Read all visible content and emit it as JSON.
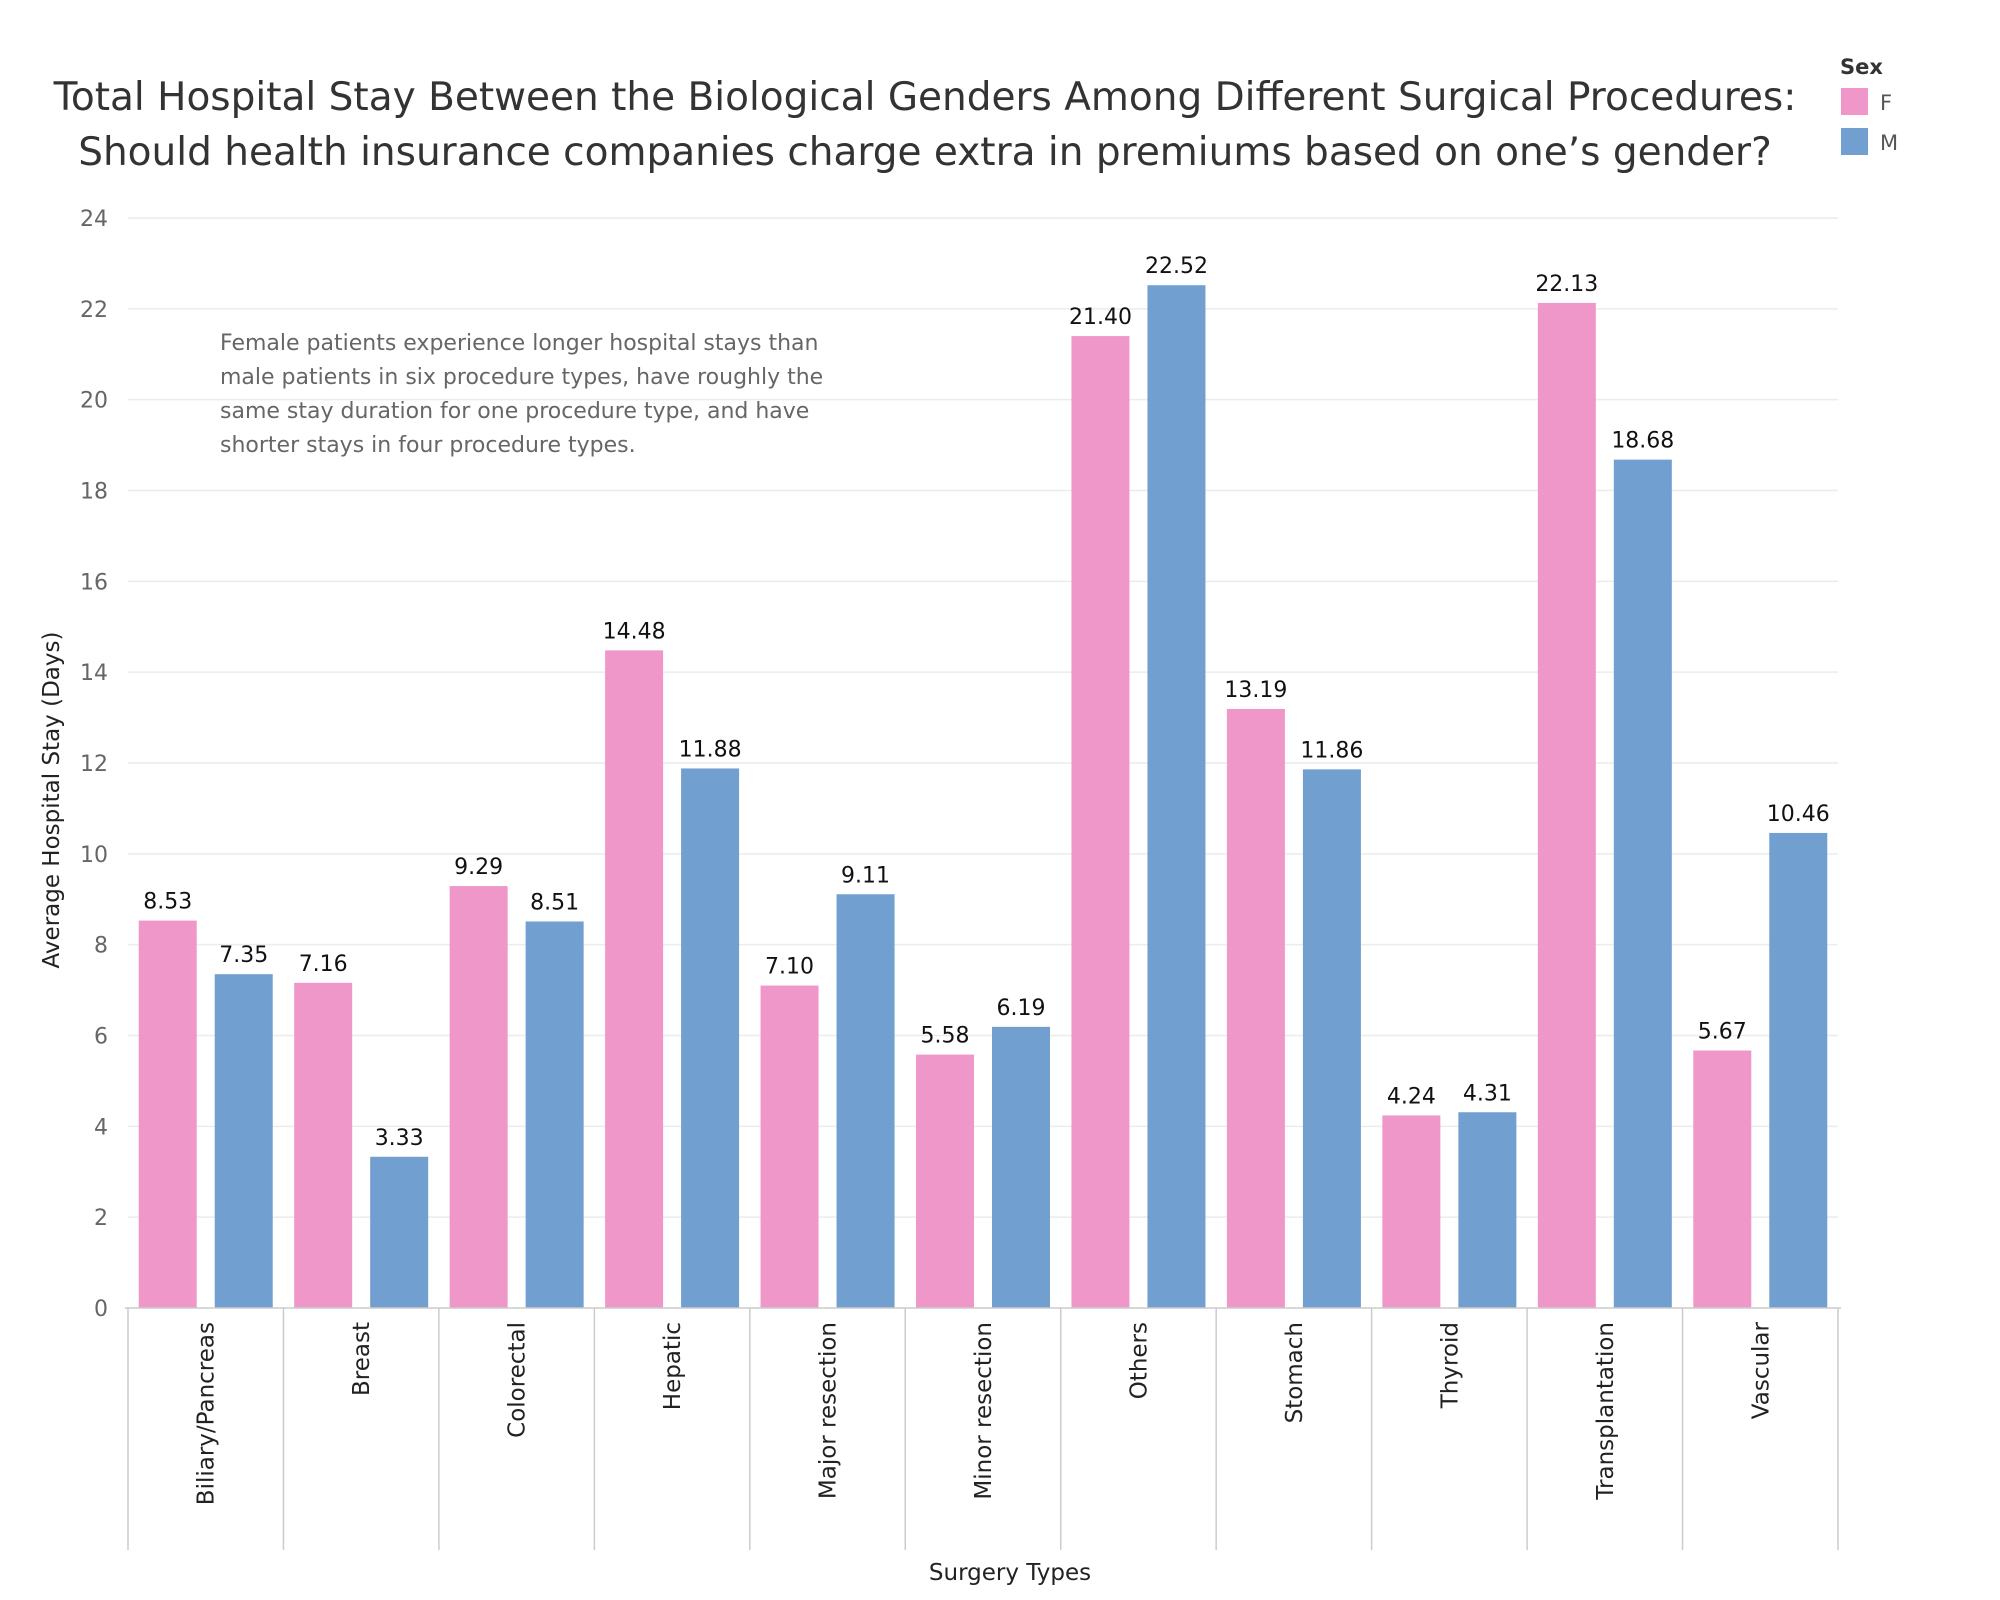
{
  "chart_data": {
    "type": "bar",
    "title": [
      "Total Hospital Stay Between the Biological Genders Among Different Surgical Procedures:",
      "Should health insurance companies charge extra in premiums based on one’s gender?"
    ],
    "xlabel": "Surgery Types",
    "ylabel": "Average Hospital Stay (Days)",
    "ylim": [
      0,
      24
    ],
    "yticks": [
      0,
      2,
      4,
      6,
      8,
      10,
      12,
      14,
      16,
      18,
      20,
      22,
      24
    ],
    "grid": true,
    "legend": {
      "title": "Sex",
      "position": "top-right"
    },
    "categories": [
      "Biliary/Pancreas",
      "Breast",
      "Colorectal",
      "Hepatic",
      "Major resection",
      "Minor resection",
      "Others",
      "Stomach",
      "Thyroid",
      "Transplantation",
      "Vascular"
    ],
    "series": [
      {
        "name": "F",
        "color": "#ef97c9",
        "values": [
          8.53,
          7.16,
          9.29,
          14.48,
          7.1,
          5.58,
          21.4,
          13.19,
          4.24,
          22.13,
          5.67
        ],
        "labels": [
          "8.53",
          "7.16",
          "9.29",
          "14.48",
          "7.10",
          "5.58",
          "21.40",
          "13.19",
          "4.24",
          "22.13",
          "5.67"
        ]
      },
      {
        "name": "M",
        "color": "#719fcf",
        "values": [
          7.35,
          3.33,
          8.51,
          11.88,
          9.11,
          6.19,
          22.52,
          11.86,
          4.31,
          18.68,
          10.46
        ],
        "labels": [
          "7.35",
          "3.33",
          "8.51",
          "11.88",
          "9.11",
          "6.19",
          "22.52",
          "11.86",
          "4.31",
          "18.68",
          "10.46"
        ]
      }
    ],
    "annotation": [
      "Female patients experience longer hospital stays than",
      "male patients in six procedure types, have roughly the",
      "same stay duration for one procedure type, and have",
      "shorter stays in four procedure types."
    ]
  }
}
